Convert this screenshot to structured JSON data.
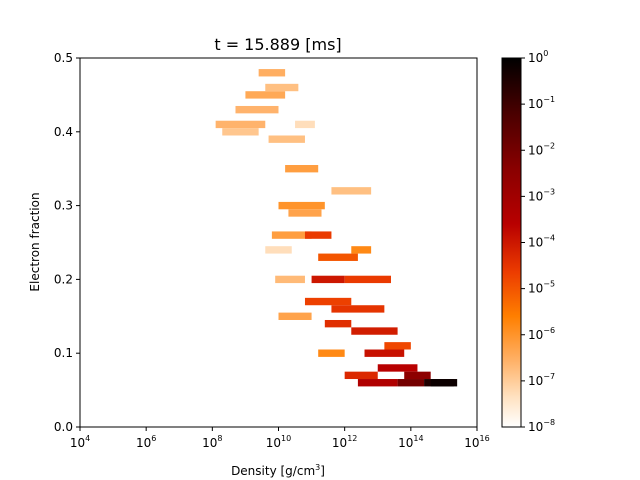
{
  "chart_data": {
    "type": "heatmap",
    "title": "t = 15.889 [ms]",
    "xlabel": {
      "base": "Density [g/cm",
      "sup": "3",
      "tail": "]"
    },
    "ylabel": "Electron fraction",
    "x_scale": "log",
    "xlim": [
      10000,
      10000000000000000
    ],
    "ylim": [
      0.0,
      0.5
    ],
    "x_ticks": [
      {
        "base": "10",
        "exp": "4",
        "value": 10000
      },
      {
        "base": "10",
        "exp": "6",
        "value": 1000000
      },
      {
        "base": "10",
        "exp": "8",
        "value": 100000000
      },
      {
        "base": "10",
        "exp": "10",
        "value": 10000000000
      },
      {
        "base": "10",
        "exp": "12",
        "value": 1000000000000
      },
      {
        "base": "10",
        "exp": "14",
        "value": 100000000000000
      },
      {
        "base": "10",
        "exp": "16",
        "value": 10000000000000000
      }
    ],
    "y_ticks": [
      {
        "label": "0.0",
        "value": 0.0
      },
      {
        "label": "0.1",
        "value": 0.1
      },
      {
        "label": "0.2",
        "value": 0.2
      },
      {
        "label": "0.3",
        "value": 0.3
      },
      {
        "label": "0.4",
        "value": 0.4
      },
      {
        "label": "0.5",
        "value": 0.5
      }
    ],
    "colorbar": {
      "scale": "log",
      "range": [
        1e-08,
        1
      ],
      "colormap": "gist_heat_r",
      "ticks": [
        {
          "base": "10",
          "exp": "0",
          "value": 1
        },
        {
          "base": "10",
          "exp": "−1",
          "value": 0.1
        },
        {
          "base": "10",
          "exp": "−2",
          "value": 0.01
        },
        {
          "base": "10",
          "exp": "−3",
          "value": 0.001
        },
        {
          "base": "10",
          "exp": "−4",
          "value": 0.0001
        },
        {
          "base": "10",
          "exp": "−5",
          "value": 1e-05
        },
        {
          "base": "10",
          "exp": "−6",
          "value": 1e-06
        },
        {
          "base": "10",
          "exp": "−7",
          "value": 1e-07
        },
        {
          "base": "10",
          "exp": "−8",
          "value": 1e-08
        }
      ]
    },
    "cell_size": {
      "log10_density": 0.2,
      "electron_fraction": 0.01
    },
    "cells_log10": [
      [
        8.1,
        9.6,
        0.41,
        -6.6
      ],
      [
        8.3,
        9.4,
        0.4,
        -6.9
      ],
      [
        8.7,
        10.0,
        0.43,
        -6.6
      ],
      [
        9.0,
        10.2,
        0.45,
        -6.4
      ],
      [
        9.4,
        10.2,
        0.48,
        -6.5
      ],
      [
        9.6,
        10.6,
        0.46,
        -6.8
      ],
      [
        9.7,
        10.8,
        0.39,
        -6.8
      ],
      [
        10.5,
        11.1,
        0.41,
        -7.3
      ],
      [
        10.2,
        11.2,
        0.35,
        -6.2
      ],
      [
        10.0,
        11.4,
        0.3,
        -6.0
      ],
      [
        9.8,
        11.0,
        0.26,
        -6.2
      ],
      [
        10.3,
        11.3,
        0.29,
        -6.3
      ],
      [
        9.9,
        10.8,
        0.2,
        -6.7
      ],
      [
        9.6,
        10.4,
        0.24,
        -7.3
      ],
      [
        10.0,
        11.0,
        0.15,
        -6.3
      ],
      [
        10.8,
        11.6,
        0.26,
        -4.6
      ],
      [
        11.0,
        12.0,
        0.2,
        -4.0
      ],
      [
        10.8,
        12.2,
        0.17,
        -4.7
      ],
      [
        11.2,
        12.4,
        0.23,
        -5.0
      ],
      [
        11.6,
        12.8,
        0.32,
        -6.8
      ],
      [
        11.4,
        12.2,
        0.14,
        -4.4
      ],
      [
        11.6,
        13.2,
        0.16,
        -4.5
      ],
      [
        12.0,
        13.4,
        0.2,
        -4.6
      ],
      [
        12.2,
        13.6,
        0.13,
        -4.1
      ],
      [
        12.6,
        13.8,
        0.1,
        -3.9
      ],
      [
        11.2,
        12.0,
        0.1,
        -5.8
      ],
      [
        12.2,
        12.8,
        0.24,
        -5.8
      ],
      [
        12.0,
        13.0,
        0.07,
        -4.3
      ],
      [
        13.0,
        14.2,
        0.08,
        -3.6
      ],
      [
        13.2,
        14.0,
        0.11,
        -4.8
      ],
      [
        12.4,
        13.6,
        0.06,
        -3.4
      ],
      [
        13.6,
        14.4,
        0.06,
        -2.0
      ],
      [
        14.4,
        15.3,
        0.06,
        -0.5
      ],
      [
        14.6,
        15.4,
        0.06,
        -0.2
      ],
      [
        13.8,
        14.6,
        0.07,
        -2.5
      ]
    ]
  }
}
